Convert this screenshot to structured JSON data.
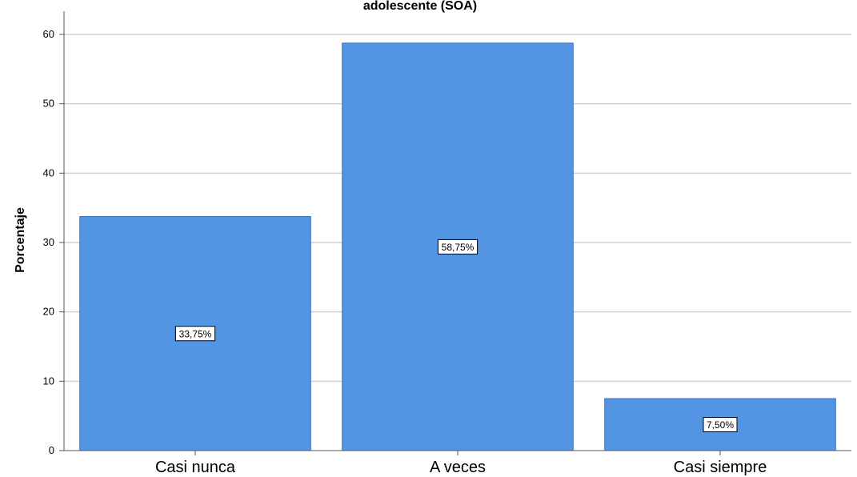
{
  "chart_data": {
    "type": "bar",
    "title": "adolescente (SOA)",
    "xlabel": "",
    "ylabel": "Porcentaje",
    "categories": [
      "Casi nunca",
      "A veces",
      "Casi siempre"
    ],
    "values": [
      33.75,
      58.75,
      7.5
    ],
    "data_labels": [
      "33,75%",
      "58,75%",
      "7,50%"
    ],
    "ylim": [
      0,
      60
    ],
    "yticks": [
      0,
      10,
      20,
      30,
      40,
      50,
      60
    ],
    "grid": true,
    "colors": {
      "bar": "#5394e3",
      "bar_edge": "#3a78c4",
      "grid": "#d0d0d0",
      "axis": "#555555"
    }
  }
}
